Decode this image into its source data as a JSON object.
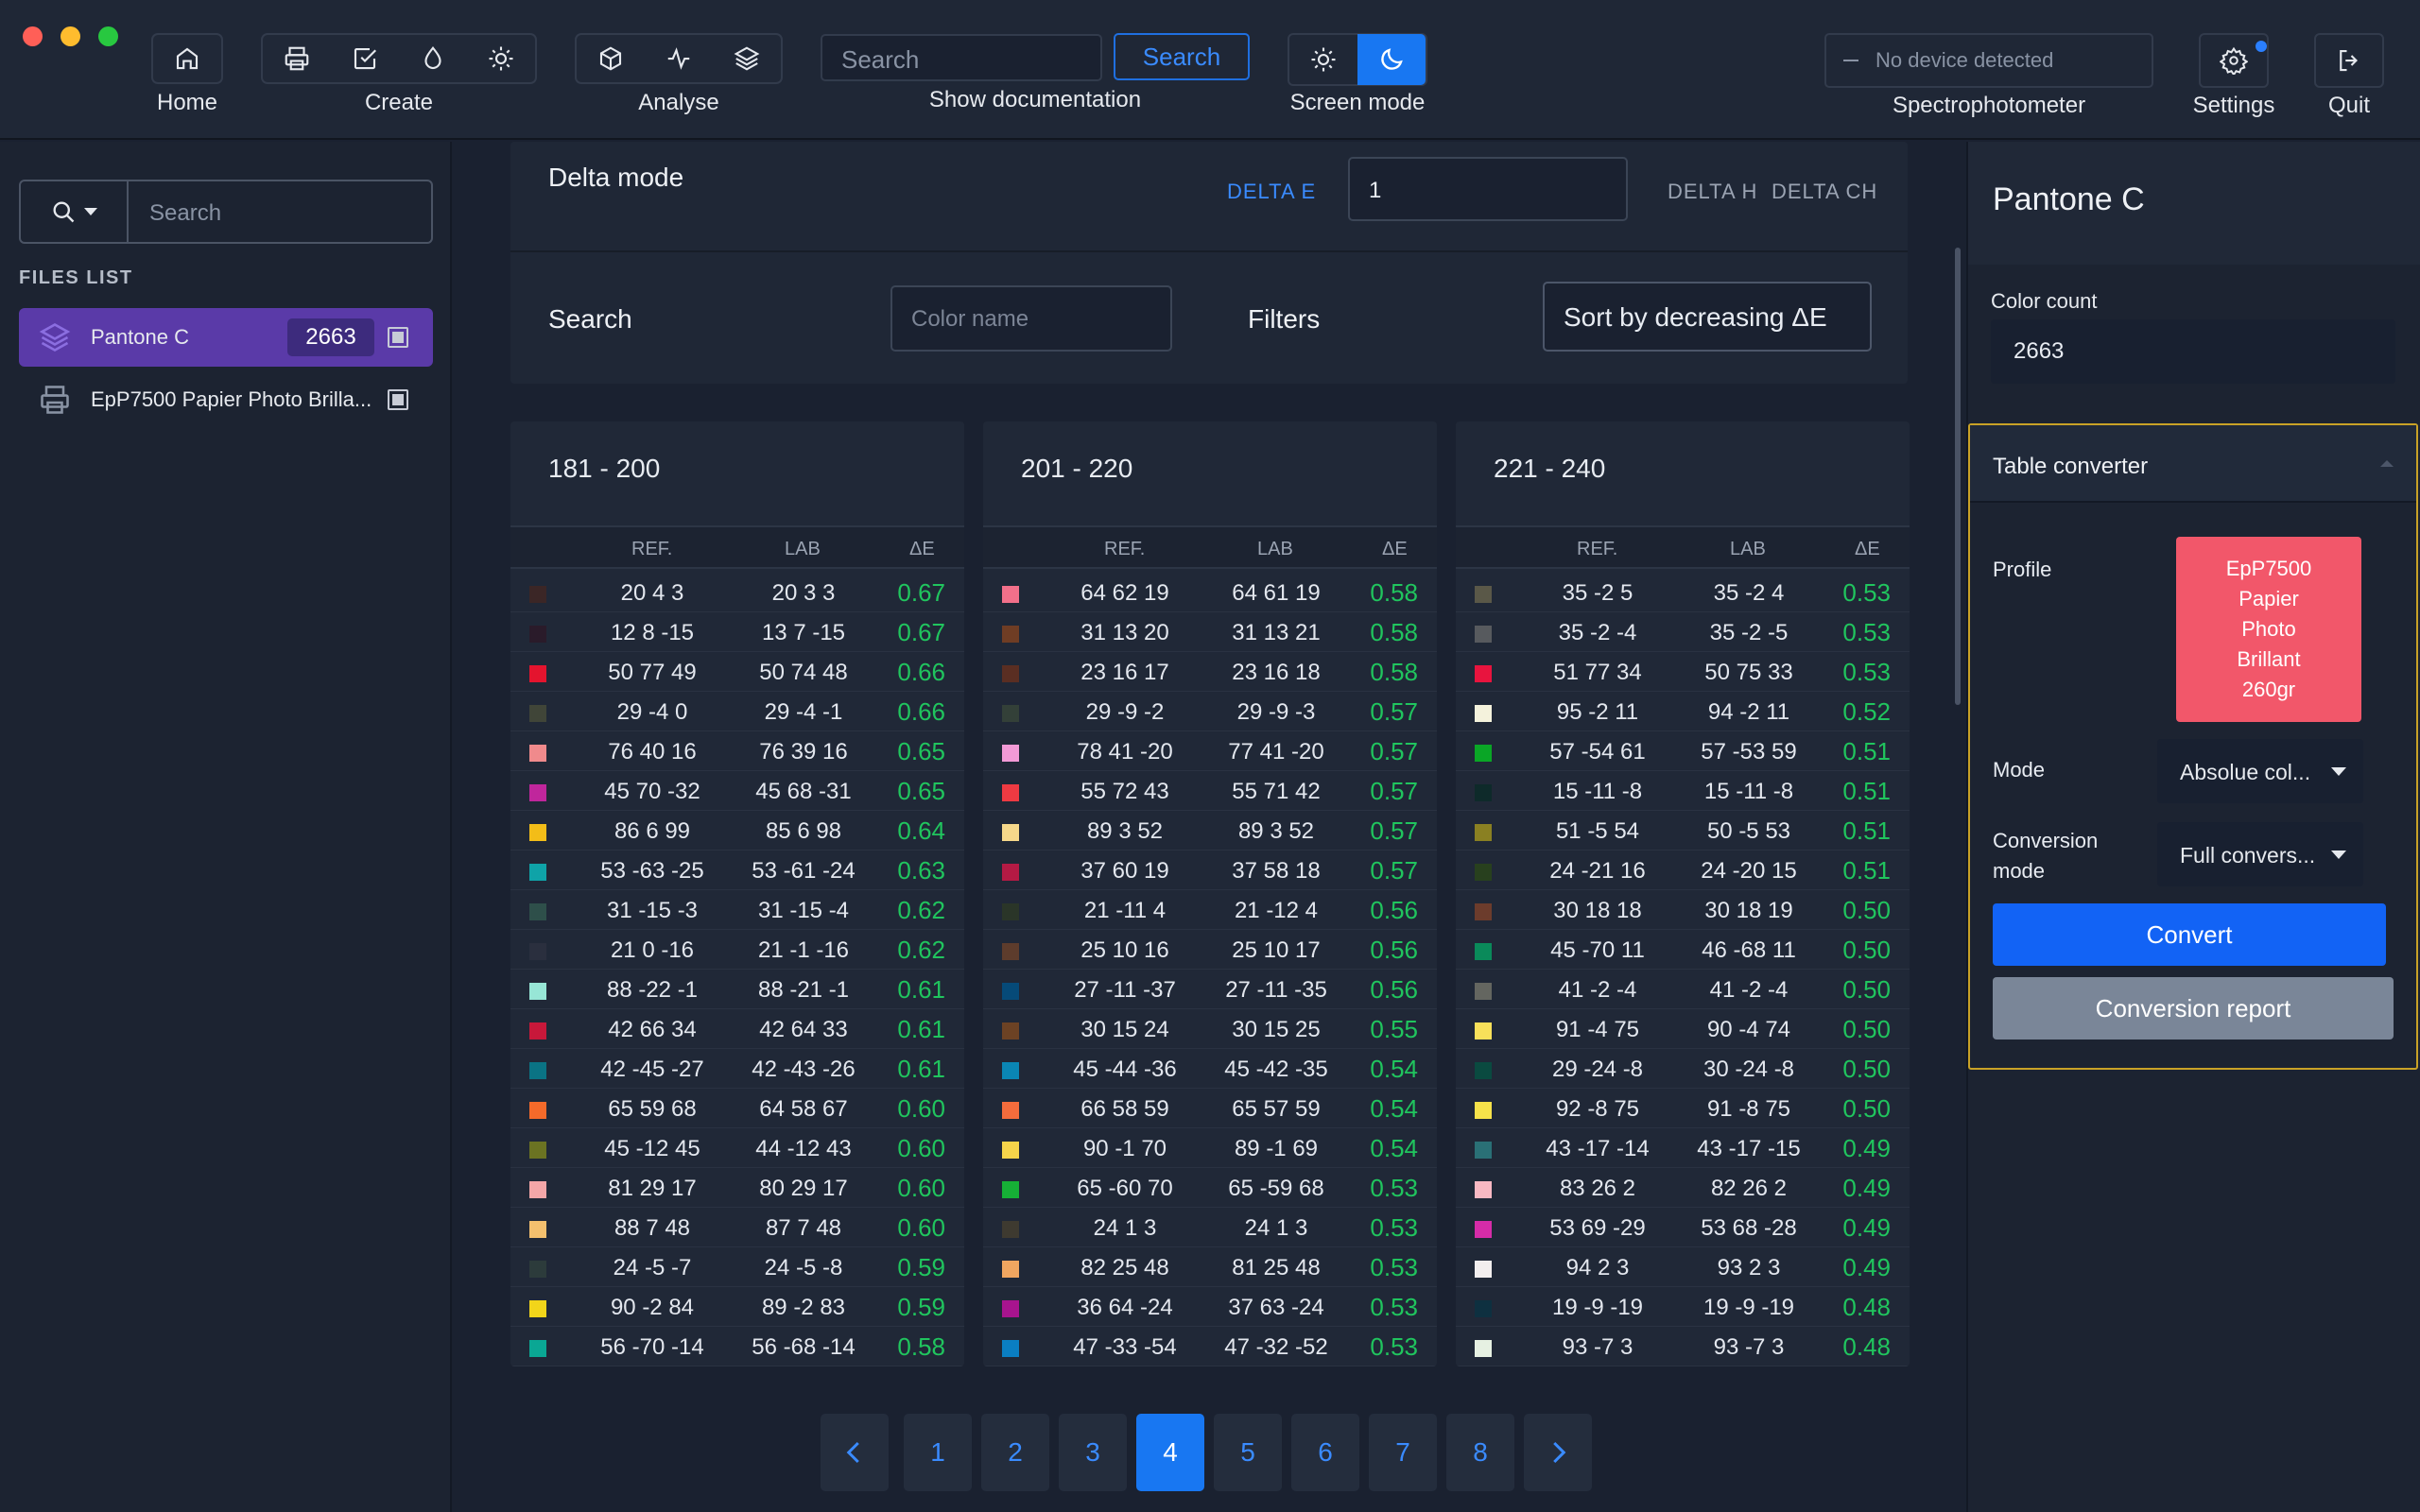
{
  "toolbar": {
    "home_label": "Home",
    "create_label": "Create",
    "analyse_label": "Analyse",
    "search_placeholder": "Search",
    "search_button": "Search",
    "show_doc_label": "Show documentation",
    "screen_mode_label": "Screen mode",
    "device_status": "No device detected",
    "spectro_label": "Spectrophotometer",
    "settings_label": "Settings",
    "quit_label": "Quit"
  },
  "sidebar": {
    "search_placeholder": "Search",
    "files_heading": "FILES LIST",
    "files": [
      {
        "name": "Pantone C",
        "count": "2663"
      },
      {
        "name": "EpP7500 Papier Photo Brilla..."
      }
    ]
  },
  "main": {
    "delta_mode_label": "Delta mode",
    "delta_tabs": [
      "DELTA E",
      "DELTA H",
      "DELTA CH"
    ],
    "delta_value": "1",
    "search_label": "Search",
    "color_name_placeholder": "Color name",
    "filters_label": "Filters",
    "sort_value": "Sort by decreasing ΔE",
    "col_ref": "REF.",
    "col_lab": "LAB",
    "col_de": "ΔE",
    "tables": [
      {
        "title": "181 - 200",
        "rows": [
          {
            "c": "#3b2626",
            "ref": "20 4 3",
            "lab": "20 3 3",
            "de": "0.67"
          },
          {
            "c": "#2a1b2a",
            "ref": "12 8 -15",
            "lab": "13 7 -15",
            "de": "0.67"
          },
          {
            "c": "#e4142e",
            "ref": "50 77 49",
            "lab": "50 74 48",
            "de": "0.66"
          },
          {
            "c": "#404538",
            "ref": "29 -4 0",
            "lab": "29 -4 -1",
            "de": "0.66"
          },
          {
            "c": "#f08a8c",
            "ref": "76 40 16",
            "lab": "76 39 16",
            "de": "0.65"
          },
          {
            "c": "#c0269c",
            "ref": "45 70 -32",
            "lab": "45 68 -31",
            "de": "0.65"
          },
          {
            "c": "#f3bd18",
            "ref": "86 6 99",
            "lab": "85 6 98",
            "de": "0.64"
          },
          {
            "c": "#0fa3a8",
            "ref": "53 -63 -25",
            "lab": "53 -61 -24",
            "de": "0.63"
          },
          {
            "c": "#2e4f4a",
            "ref": "31 -15 -3",
            "lab": "31 -15 -4",
            "de": "0.62"
          },
          {
            "c": "#2a2f3e",
            "ref": "21 0 -16",
            "lab": "21 -1 -16",
            "de": "0.62"
          },
          {
            "c": "#97e6d6",
            "ref": "88 -22 -1",
            "lab": "88 -21 -1",
            "de": "0.61"
          },
          {
            "c": "#c8183a",
            "ref": "42 66 34",
            "lab": "42 64 33",
            "de": "0.61"
          },
          {
            "c": "#0a7384",
            "ref": "42 -45 -27",
            "lab": "42 -43 -26",
            "de": "0.61"
          },
          {
            "c": "#f46a2a",
            "ref": "65 59 68",
            "lab": "64 58 67",
            "de": "0.60"
          },
          {
            "c": "#6b7322",
            "ref": "45 -12 45",
            "lab": "44 -12 43",
            "de": "0.60"
          },
          {
            "c": "#f4a6a8",
            "ref": "81 29 17",
            "lab": "80 29 17",
            "de": "0.60"
          },
          {
            "c": "#f4c06e",
            "ref": "88 7 48",
            "lab": "87 7 48",
            "de": "0.60"
          },
          {
            "c": "#2c3b3b",
            "ref": "24 -5 -7",
            "lab": "24 -5 -8",
            "de": "0.59"
          },
          {
            "c": "#f2d51a",
            "ref": "90 -2 84",
            "lab": "89 -2 83",
            "de": "0.59"
          },
          {
            "c": "#0aa794",
            "ref": "56 -70 -14",
            "lab": "56 -68 -14",
            "de": "0.58"
          }
        ]
      },
      {
        "title": "201 - 220",
        "rows": [
          {
            "c": "#f2708a",
            "ref": "64 62 19",
            "lab": "64 61 19",
            "de": "0.58"
          },
          {
            "c": "#6f3d24",
            "ref": "31 13 20",
            "lab": "31 13 21",
            "de": "0.58"
          },
          {
            "c": "#5a2e22",
            "ref": "23 16 17",
            "lab": "23 16 18",
            "de": "0.58"
          },
          {
            "c": "#334038",
            "ref": "29 -9 -2",
            "lab": "29 -9 -3",
            "de": "0.57"
          },
          {
            "c": "#f29ad6",
            "ref": "78 41 -20",
            "lab": "77 41 -20",
            "de": "0.57"
          },
          {
            "c": "#ee3a42",
            "ref": "55 72 43",
            "lab": "55 71 42",
            "de": "0.57"
          },
          {
            "c": "#f6d88a",
            "ref": "89 3 52",
            "lab": "89 3 52",
            "de": "0.57"
          },
          {
            "c": "#b41a44",
            "ref": "37 60 19",
            "lab": "37 58 18",
            "de": "0.57"
          },
          {
            "c": "#2a3528",
            "ref": "21 -11 4",
            "lab": "21 -12 4",
            "de": "0.56"
          },
          {
            "c": "#5d3c2c",
            "ref": "25 10 16",
            "lab": "25 10 17",
            "de": "0.56"
          },
          {
            "c": "#064a78",
            "ref": "27 -11 -37",
            "lab": "27 -11 -35",
            "de": "0.56"
          },
          {
            "c": "#6c4224",
            "ref": "30 15 24",
            "lab": "30 15 25",
            "de": "0.55"
          },
          {
            "c": "#0a86b4",
            "ref": "45 -44 -36",
            "lab": "45 -42 -35",
            "de": "0.54"
          },
          {
            "c": "#f46c3c",
            "ref": "66 58 59",
            "lab": "65 57 59",
            "de": "0.54"
          },
          {
            "c": "#f6d44a",
            "ref": "90 -1 70",
            "lab": "89 -1 69",
            "de": "0.54"
          },
          {
            "c": "#16b036",
            "ref": "65 -60 70",
            "lab": "65 -59 68",
            "de": "0.53"
          },
          {
            "c": "#3e3a30",
            "ref": "24 1 3",
            "lab": "24 1 3",
            "de": "0.53"
          },
          {
            "c": "#f0a660",
            "ref": "82 25 48",
            "lab": "81 25 48",
            "de": "0.53"
          },
          {
            "c": "#a8148e",
            "ref": "36 64 -24",
            "lab": "37 63 -24",
            "de": "0.53"
          },
          {
            "c": "#0a7ec2",
            "ref": "47 -33 -54",
            "lab": "47 -32 -52",
            "de": "0.53"
          }
        ]
      },
      {
        "title": "221 - 240",
        "rows": [
          {
            "c": "#5a5848",
            "ref": "35 -2 5",
            "lab": "35 -2 4",
            "de": "0.53"
          },
          {
            "c": "#575a5e",
            "ref": "35 -2 -4",
            "lab": "35 -2 -5",
            "de": "0.53"
          },
          {
            "c": "#e8143e",
            "ref": "51 77 34",
            "lab": "50 75 33",
            "de": "0.53"
          },
          {
            "c": "#f4f2dc",
            "ref": "95 -2 11",
            "lab": "94 -2 11",
            "de": "0.52"
          },
          {
            "c": "#0aa626",
            "ref": "57 -54 61",
            "lab": "57 -53 59",
            "de": "0.51"
          },
          {
            "c": "#0e2a2a",
            "ref": "15 -11 -8",
            "lab": "15 -11 -8",
            "de": "0.51"
          },
          {
            "c": "#8a8022",
            "ref": "51 -5 54",
            "lab": "50 -5 53",
            "de": "0.51"
          },
          {
            "c": "#28401e",
            "ref": "24 -21 16",
            "lab": "24 -20 15",
            "de": "0.51"
          },
          {
            "c": "#6c3c2c",
            "ref": "30 18 18",
            "lab": "30 18 19",
            "de": "0.50"
          },
          {
            "c": "#0a8a5a",
            "ref": "45 -70 11",
            "lab": "46 -68 11",
            "de": "0.50"
          },
          {
            "c": "#646660",
            "ref": "41 -2 -4",
            "lab": "41 -2 -4",
            "de": "0.50"
          },
          {
            "c": "#f8e05a",
            "ref": "91 -4 75",
            "lab": "90 -4 74",
            "de": "0.50"
          },
          {
            "c": "#0a4a40",
            "ref": "29 -24 -8",
            "lab": "30 -24 -8",
            "de": "0.50"
          },
          {
            "c": "#f6e24a",
            "ref": "92 -8 75",
            "lab": "91 -8 75",
            "de": "0.50"
          },
          {
            "c": "#2a7076",
            "ref": "43 -17 -14",
            "lab": "43 -17 -15",
            "de": "0.49"
          },
          {
            "c": "#f8b8c2",
            "ref": "83 26 2",
            "lab": "82 26 2",
            "de": "0.49"
          },
          {
            "c": "#d62ca8",
            "ref": "53 69 -29",
            "lab": "53 68 -28",
            "de": "0.49"
          },
          {
            "c": "#f2eeee",
            "ref": "94 2 3",
            "lab": "93 2 3",
            "de": "0.49"
          },
          {
            "c": "#0e3040",
            "ref": "19 -9 -19",
            "lab": "19 -9 -19",
            "de": "0.48"
          },
          {
            "c": "#e6f0e2",
            "ref": "93 -7 3",
            "lab": "93 -7 3",
            "de": "0.48"
          }
        ]
      }
    ],
    "pages": [
      "1",
      "2",
      "3",
      "4",
      "5",
      "6",
      "7",
      "8"
    ],
    "active_page": "4"
  },
  "right": {
    "title": "Pantone C",
    "color_count_label": "Color count",
    "color_count": "2663",
    "converter_title": "Table converter",
    "profile_label": "Profile",
    "profile_lines": [
      "EpP7500",
      "Papier",
      "Photo",
      "Brillant",
      "260gr"
    ],
    "mode_label": "Mode",
    "mode_value": "Absolue col...",
    "conv_mode_label_1": "Conversion",
    "conv_mode_label_2": "mode",
    "conv_mode_value": "Full convers...",
    "convert_button": "Convert",
    "report_button": "Conversion report"
  },
  "colors": {
    "accent": "#1877f2",
    "success": "#20c55e",
    "profile_swatch": "#f2576a",
    "active_file": "#5a3aa8",
    "highlight_border": "#c9a227"
  }
}
